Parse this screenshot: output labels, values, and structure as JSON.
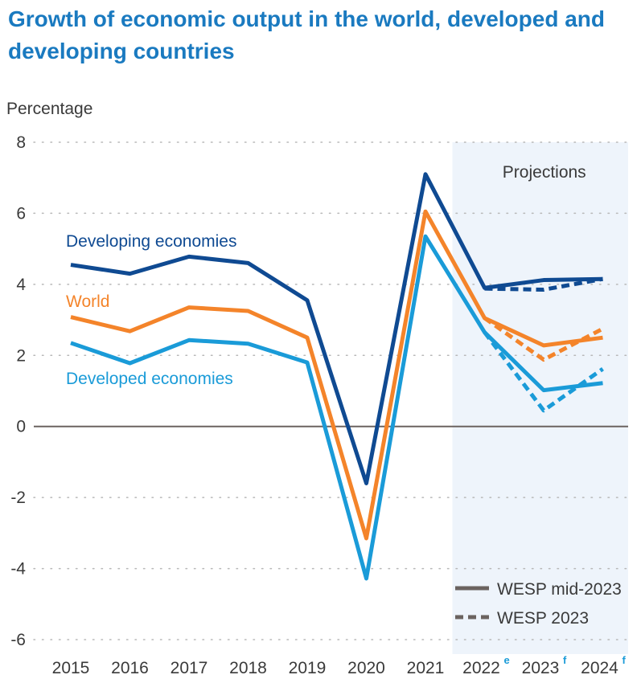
{
  "title": "Growth of economic output in the world, developed and developing countries",
  "chart_data": {
    "type": "line",
    "ylabel": "Percentage",
    "ylim": [
      -6,
      8
    ],
    "yticks": [
      8,
      6,
      4,
      2,
      0,
      -2,
      -4,
      -6
    ],
    "ytick_labels": [
      "8",
      "6",
      "4",
      "2",
      "0",
      "-2",
      "-4",
      "-6"
    ],
    "categories": [
      "2015",
      "2016",
      "2017",
      "2018",
      "2019",
      "2020",
      "2021",
      "2022",
      "2023",
      "2024"
    ],
    "category_superscripts": [
      "",
      "",
      "",
      "",
      "",
      "",
      "",
      "e",
      "f",
      "f"
    ],
    "projection_label": "Projections",
    "projection_start": "2022",
    "series": [
      {
        "name": "Developing economies",
        "color": "#0f4a92",
        "values": [
          4.55,
          4.3,
          4.78,
          4.6,
          3.55,
          -1.6,
          7.1,
          3.9,
          4.12,
          4.15
        ],
        "wesp2023": [
          null,
          null,
          null,
          null,
          null,
          null,
          null,
          3.88,
          3.85,
          4.15
        ]
      },
      {
        "name": "World",
        "color": "#f4842a",
        "values": [
          3.08,
          2.68,
          3.35,
          3.25,
          2.5,
          -3.15,
          6.05,
          3.05,
          2.28,
          2.5
        ],
        "wesp2023": [
          null,
          null,
          null,
          null,
          null,
          null,
          null,
          3.05,
          1.88,
          2.75
        ]
      },
      {
        "name": "Developed economies",
        "color": "#1a9bd8",
        "values": [
          2.35,
          1.78,
          2.43,
          2.33,
          1.8,
          -4.28,
          5.35,
          2.65,
          1.02,
          1.22
        ],
        "wesp2023": [
          null,
          null,
          null,
          null,
          null,
          null,
          null,
          2.65,
          0.45,
          1.62
        ]
      }
    ],
    "legend": [
      {
        "label": "WESP mid-2023",
        "style": "solid"
      },
      {
        "label": "WESP 2023",
        "style": "dashed"
      }
    ],
    "legend_position": "bottom-right",
    "grid": "horizontal-dotted"
  }
}
